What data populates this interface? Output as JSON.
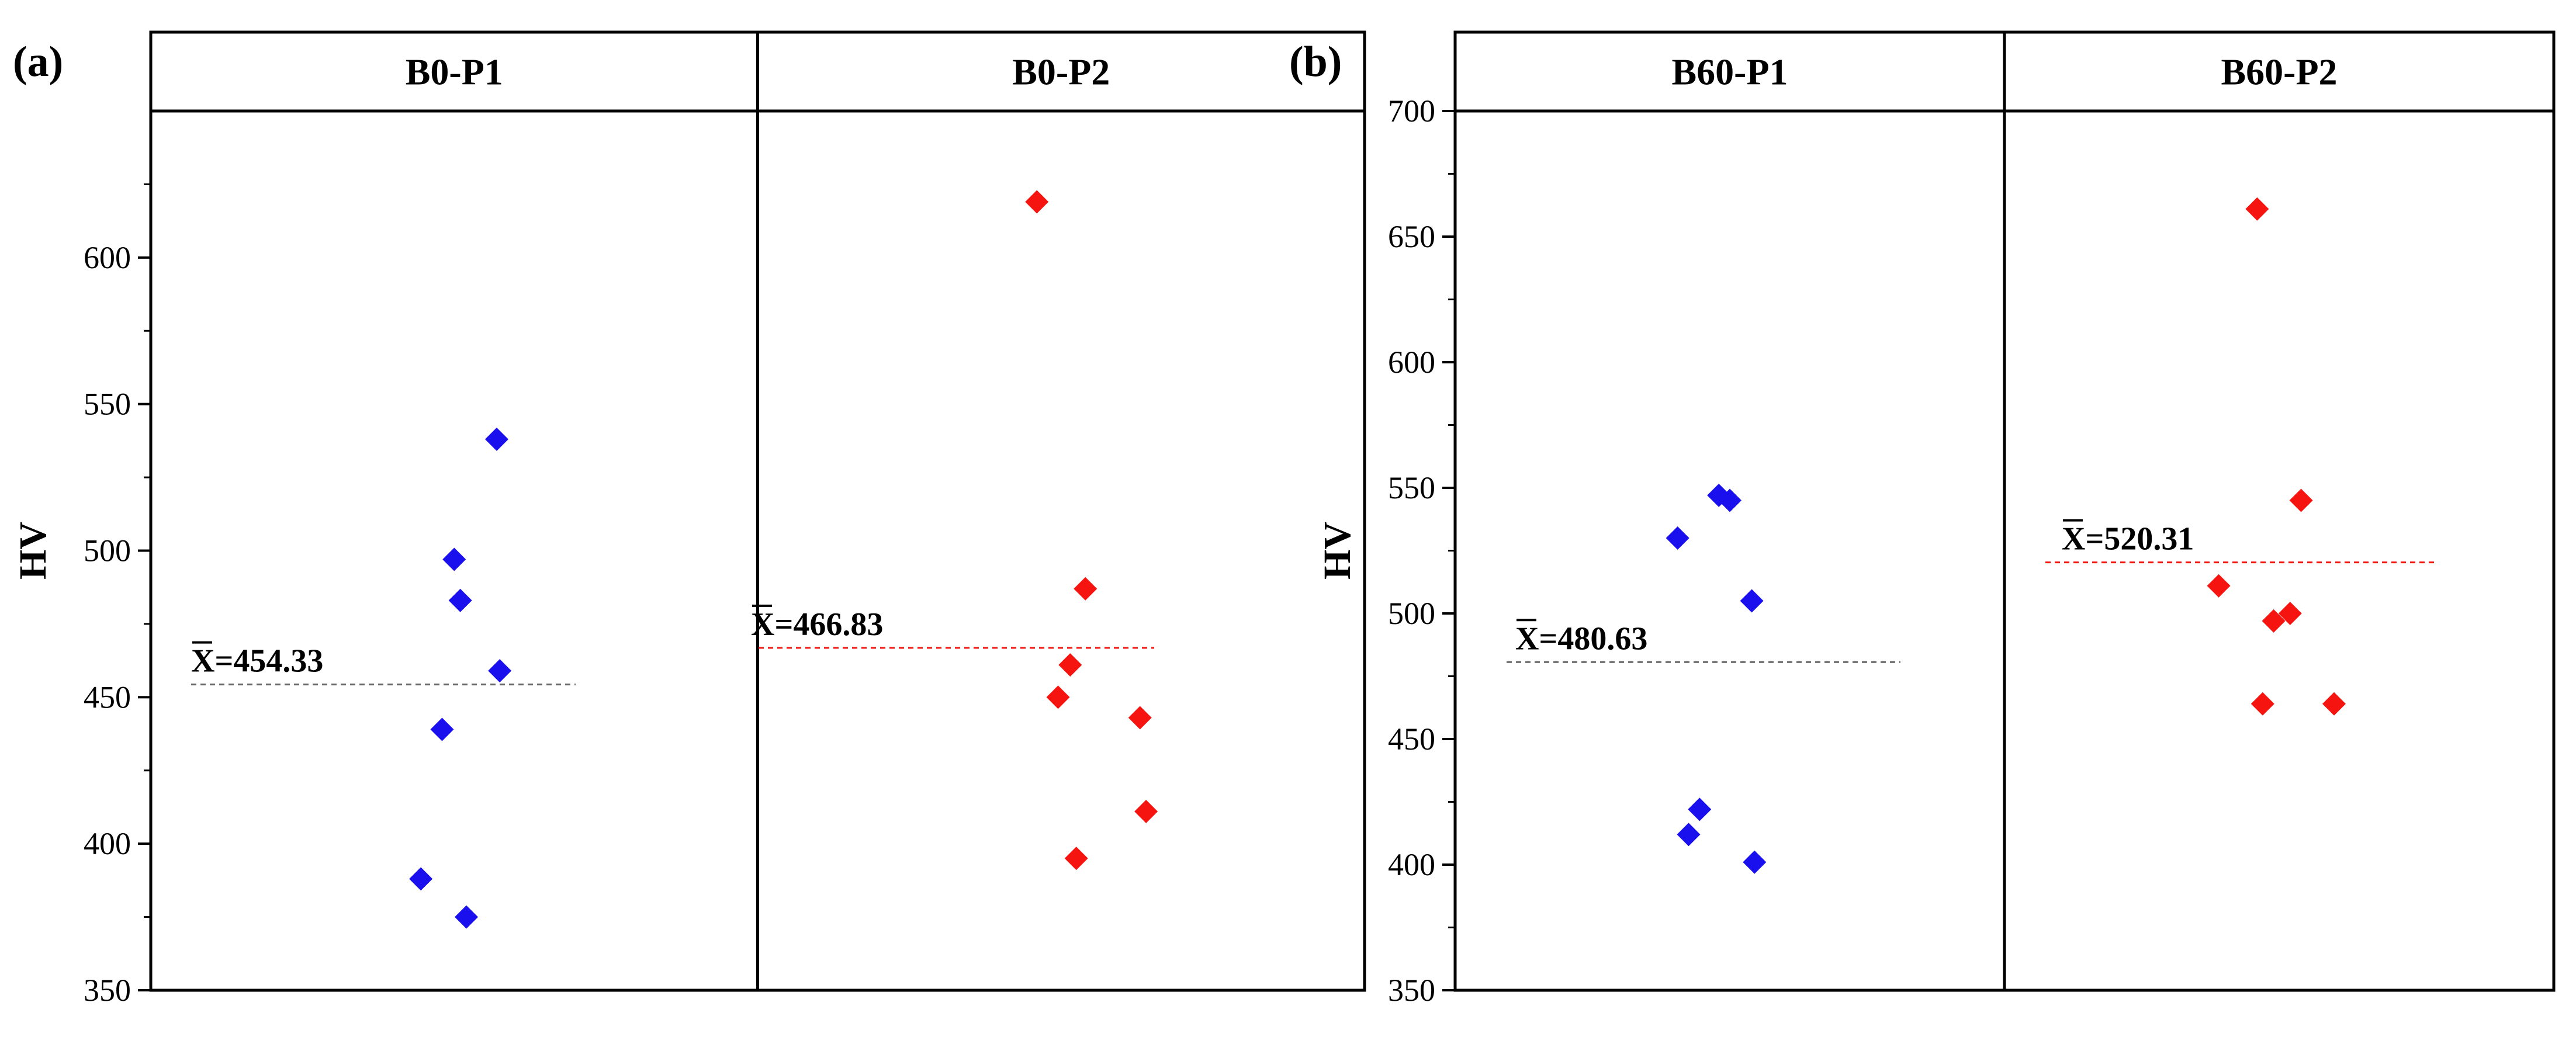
{
  "chart_data": [
    {
      "type": "scatter",
      "panel_label": "(a)",
      "ylabel": "HV",
      "ylim": [
        350,
        650
      ],
      "yticks": [
        350,
        400,
        450,
        500,
        550,
        600
      ],
      "ytick_labels": [
        "350",
        "400",
        "450",
        "500",
        "550",
        "600"
      ],
      "ylabel_color": "#000000",
      "groups": [
        {
          "name": "B0-P1",
          "color": "#1a10ee",
          "marker": "diamond",
          "values": [
            538,
            497,
            483,
            459,
            439,
            388,
            375
          ],
          "x_offsets": [
            0.14,
            0.0,
            0.02,
            0.15,
            -0.04,
            -0.11,
            0.04
          ],
          "mean": 454.33,
          "mean_label": "X=454.33",
          "mean_line_color": "#666666",
          "mean_line_style": "dashed"
        },
        {
          "name": "B0-P2",
          "color": "#f5140f",
          "marker": "diamond",
          "values": [
            619,
            487,
            461,
            450,
            443,
            411,
            395
          ],
          "x_offsets": [
            -0.08,
            0.08,
            0.03,
            -0.01,
            0.26,
            0.28,
            0.05
          ],
          "mean": 466.83,
          "mean_label": "X=466.83",
          "mean_line_color": "#f5140f",
          "mean_line_style": "dashed"
        }
      ]
    },
    {
      "type": "scatter",
      "panel_label": "(b)",
      "ylabel": "HV",
      "ylim": [
        350,
        700
      ],
      "yticks": [
        350,
        400,
        450,
        500,
        550,
        600,
        650,
        700
      ],
      "ytick_labels": [
        "350",
        "400",
        "450",
        "500",
        "550",
        "600",
        "650",
        "700"
      ],
      "groups": [
        {
          "name": "B60-P1",
          "color": "#1a10ee",
          "marker": "diamond",
          "values": [
            547,
            545,
            530,
            505,
            422,
            412,
            401
          ],
          "x_offsets": [
            -0.04,
            0.0,
            -0.19,
            0.08,
            -0.11,
            -0.15,
            0.09
          ],
          "mean": 480.63,
          "mean_label": "X=480.63",
          "mean_line_color": "#666666",
          "mean_line_style": "dashed"
        },
        {
          "name": "B60-P2",
          "color": "#f5140f",
          "marker": "diamond",
          "values": [
            661,
            545,
            511,
            500,
            497,
            464,
            464
          ],
          "x_offsets": [
            -0.08,
            0.08,
            -0.22,
            0.04,
            -0.02,
            -0.06,
            0.2
          ],
          "mean": 520.31,
          "mean_label": "X=520.31",
          "mean_line_color": "#f5140f",
          "mean_line_style": "dashed"
        }
      ]
    }
  ]
}
